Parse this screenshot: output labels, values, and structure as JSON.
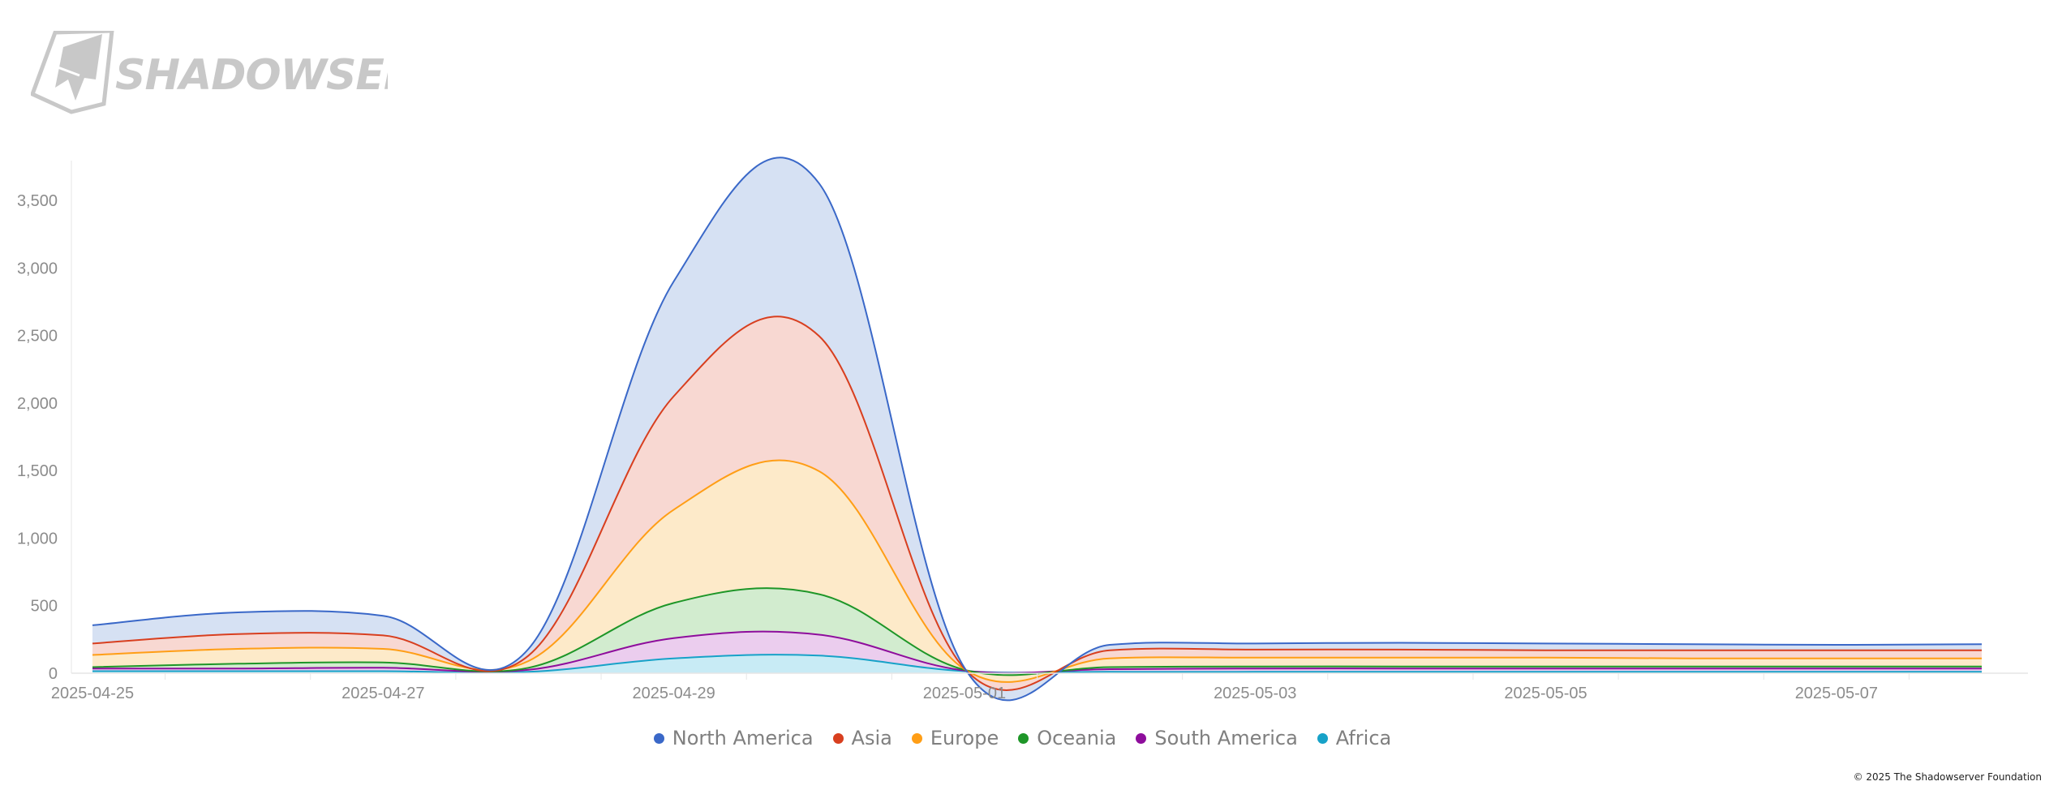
{
  "logo": {
    "text": "SHADOWSERVER"
  },
  "copyright": "© 2025 The Shadowserver Foundation",
  "chart_data": {
    "type": "area",
    "stacked": true,
    "x": [
      "2025-04-25",
      "2025-04-26",
      "2025-04-27",
      "2025-04-28",
      "2025-04-29",
      "2025-04-30",
      "2025-05-01",
      "2025-05-02",
      "2025-05-03",
      "2025-05-04",
      "2025-05-05",
      "2025-05-06",
      "2025-05-07",
      "2025-05-08"
    ],
    "xticks": [
      "2025-04-25",
      "2025-04-27",
      "2025-04-29",
      "2025-05-01",
      "2025-05-03",
      "2025-05-05",
      "2025-05-07"
    ],
    "yticks": [
      0,
      500,
      1000,
      1500,
      2000,
      2500,
      3000,
      3500
    ],
    "yticklabels": [
      "0",
      "500",
      "1,000",
      "1,500",
      "2,000",
      "2,500",
      "3,000",
      "3,500"
    ],
    "ylim": [
      0,
      3780
    ],
    "grid": false,
    "legend_position": "bottom",
    "series": [
      {
        "name": "Africa",
        "color": "#17a2c8",
        "fill": "#c8ebf5",
        "values": [
          15,
          15,
          15,
          10,
          110,
          130,
          15,
          10,
          10,
          10,
          10,
          10,
          10,
          10
        ]
      },
      {
        "name": "South America",
        "color": "#8e0d9c",
        "fill": "#ebcdee",
        "values": [
          20,
          20,
          25,
          15,
          150,
          155,
          5,
          20,
          25,
          25,
          25,
          25,
          25,
          25
        ]
      },
      {
        "name": "Oceania",
        "color": "#1e9628",
        "fill": "#d2eccf",
        "values": [
          10,
          35,
          40,
          15,
          260,
          300,
          5,
          15,
          15,
          15,
          15,
          15,
          15,
          15
        ]
      },
      {
        "name": "Europe",
        "color": "#ff9e16",
        "fill": "#fdeac9",
        "values": [
          90,
          110,
          100,
          50,
          690,
          910,
          5,
          65,
          65,
          65,
          65,
          60,
          60,
          60
        ]
      },
      {
        "name": "Asia",
        "color": "#d83f1f",
        "fill": "#f8d8d2",
        "values": [
          85,
          110,
          100,
          40,
          840,
          1000,
          5,
          60,
          60,
          60,
          55,
          60,
          60,
          60
        ]
      },
      {
        "name": "North America",
        "color": "#3a68c8",
        "fill": "#d6e1f3",
        "values": [
          135,
          160,
          145,
          50,
          850,
          1130,
          5,
          40,
          45,
          50,
          50,
          45,
          40,
          45
        ]
      }
    ],
    "legend_order": [
      "North America",
      "Asia",
      "Europe",
      "Oceania",
      "South America",
      "Africa"
    ]
  }
}
